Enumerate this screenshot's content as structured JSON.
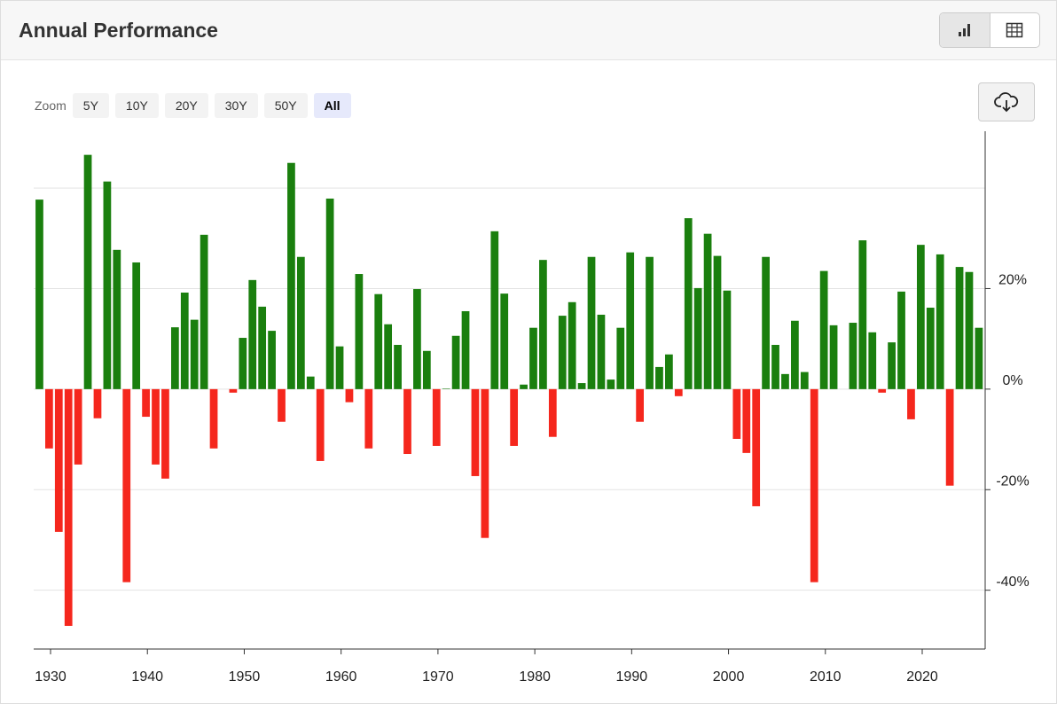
{
  "header": {
    "title": "Annual Performance"
  },
  "zoom": {
    "label": "Zoom",
    "options": [
      "5Y",
      "10Y",
      "20Y",
      "30Y",
      "50Y",
      "All"
    ],
    "selected": 5
  },
  "chart_data": {
    "type": "bar",
    "x": [
      1928,
      1929,
      1930,
      1931,
      1932,
      1933,
      1934,
      1935,
      1936,
      1937,
      1938,
      1939,
      1940,
      1941,
      1942,
      1943,
      1944,
      1945,
      1946,
      1947,
      1948,
      1949,
      1950,
      1951,
      1952,
      1953,
      1954,
      1955,
      1956,
      1957,
      1958,
      1959,
      1960,
      1961,
      1962,
      1963,
      1964,
      1965,
      1966,
      1967,
      1968,
      1969,
      1970,
      1971,
      1972,
      1973,
      1974,
      1975,
      1976,
      1977,
      1978,
      1979,
      1980,
      1981,
      1982,
      1983,
      1984,
      1985,
      1986,
      1987,
      1988,
      1989,
      1990,
      1991,
      1992,
      1993,
      1994,
      1995,
      1996,
      1997,
      1998,
      1999,
      2000,
      2001,
      2002,
      2003,
      2004,
      2005,
      2006,
      2007,
      2008,
      2009,
      2010,
      2011,
      2012,
      2013,
      2014,
      2015,
      2016,
      2017,
      2018,
      2019,
      2020,
      2021,
      2022,
      2023,
      2024,
      2025
    ],
    "values": [
      37.7,
      -11.8,
      -28.4,
      -47.1,
      -15.0,
      46.6,
      -5.8,
      41.3,
      27.7,
      -38.4,
      25.2,
      -5.5,
      -15.0,
      -17.8,
      12.3,
      19.2,
      13.8,
      30.7,
      -11.8,
      0,
      -0.7,
      10.2,
      21.7,
      16.4,
      11.6,
      -6.5,
      45.0,
      26.3,
      2.5,
      -14.3,
      37.9,
      8.5,
      -2.6,
      22.9,
      -11.8,
      18.9,
      12.9,
      8.8,
      -12.9,
      19.9,
      7.6,
      -11.3,
      0.1,
      10.6,
      15.5,
      -17.3,
      -29.6,
      31.4,
      19.0,
      -11.3,
      0.9,
      12.2,
      25.7,
      -9.5,
      14.6,
      17.3,
      1.2,
      26.3,
      14.8,
      1.9,
      12.2,
      27.2,
      -6.5,
      26.3,
      4.4,
      6.9,
      -1.4,
      34.0,
      20.1,
      30.9,
      26.5,
      19.6,
      -9.9,
      -12.7,
      -23.3,
      26.3,
      8.8,
      3.0,
      13.6,
      3.4,
      -38.4,
      23.5,
      12.7,
      0,
      13.2,
      29.6,
      11.3,
      -0.7,
      9.3,
      19.4,
      -6.0,
      28.7,
      16.2,
      26.8,
      -19.2,
      24.3,
      23.3,
      12.2
    ],
    "positive_color": "#1a7f0e",
    "negative_color": "#f5271d",
    "xlim": [
      1928.26,
      2026.5
    ],
    "xticks": [
      1930,
      1940,
      1950,
      1960,
      1970,
      1980,
      1990,
      2000,
      2010,
      2020
    ],
    "ylim": [
      -51.7,
      51.3
    ],
    "yticks": [
      {
        "value": -40,
        "label": "-40%"
      },
      {
        "value": -20,
        "label": "-20%"
      },
      {
        "value": 0,
        "label": "0%"
      },
      {
        "value": 20,
        "label": "20%"
      }
    ],
    "ygrid": [
      -40,
      -20,
      0,
      20,
      40
    ],
    "grid": true
  }
}
